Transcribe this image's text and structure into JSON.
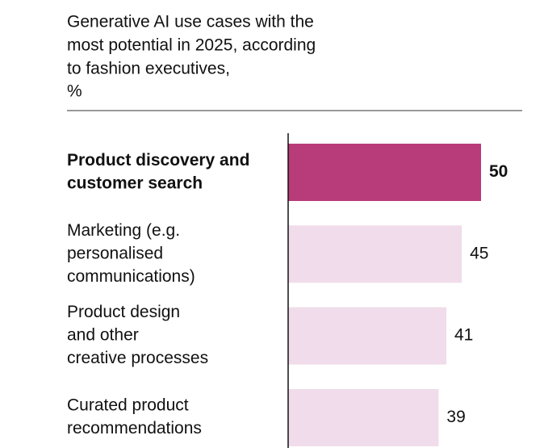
{
  "chart_data": {
    "type": "bar",
    "orientation": "horizontal",
    "title": [
      "Generative AI use cases with the",
      "most potential in 2025, according",
      "to fashion executives,"
    ],
    "subtitle": "%",
    "categories": [
      [
        "Product discovery and",
        "customer search"
      ],
      [
        "Marketing (e.g.",
        "personalised",
        "communications)"
      ],
      [
        "Product design",
        "and other",
        "creative processes"
      ],
      [
        "Curated product",
        "recommendations"
      ]
    ],
    "values": [
      50,
      45,
      41,
      39
    ],
    "colors": [
      "#b83b7a",
      "#f0dcea",
      "#f0dcea",
      "#f0dcea"
    ],
    "highlight": 0,
    "xlim": [
      0,
      50
    ]
  }
}
